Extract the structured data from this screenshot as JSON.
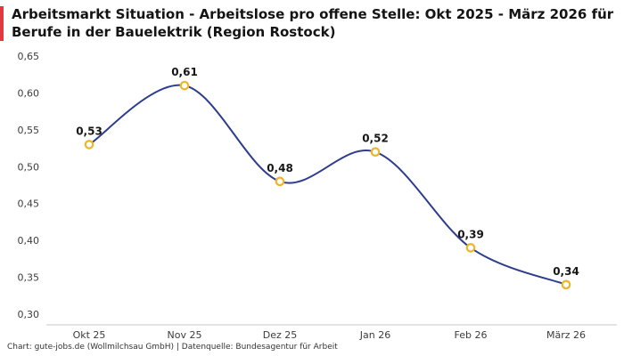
{
  "header": {
    "title_line1": "Arbeitsmarkt Situation - Arbeitslose pro offene Stelle: Okt 2025 - März 2026 für",
    "title_line2": "Berufe in der Bauelektrik (Region Rostock)",
    "accent_color": "#e03a3f"
  },
  "footer": {
    "text": "Chart: gute-jobs.de (Wollmilchsau GmbH) | Datenquelle: Bundesagentur für Arbeit"
  },
  "chart_data": {
    "type": "line",
    "title": "Arbeitsmarkt Situation - Arbeitslose pro offene Stelle: Okt 2025 - März 2026 für Berufe in der Bauelektrik (Region Rostock)",
    "categories": [
      "Okt 25",
      "Nov 25",
      "Dez 25",
      "Jan 26",
      "Feb 26",
      "März 26"
    ],
    "values": [
      0.53,
      0.61,
      0.48,
      0.52,
      0.39,
      0.34
    ],
    "value_labels": [
      "0,53",
      "0,61",
      "0,48",
      "0,52",
      "0,39",
      "0,34"
    ],
    "ylim": [
      0.3,
      0.65
    ],
    "yticks": [
      0.65,
      0.6,
      0.55,
      0.5,
      0.45,
      0.4,
      0.35,
      0.3
    ],
    "ytick_labels": [
      "0,65",
      "0,60",
      "0,55",
      "0,50",
      "0,45",
      "0,40",
      "0,35",
      "0,30"
    ],
    "xlabel": "",
    "ylabel": "",
    "grid": false,
    "legend": "none",
    "curve": "smooth",
    "line_color": "#2e3d8e",
    "marker_stroke": "#f0b429",
    "marker_fill": "#ffffff",
    "axis_line_color": "#c9c9c9",
    "tick_label_color": "#3c3c3c",
    "data_label_color": "#161616"
  }
}
